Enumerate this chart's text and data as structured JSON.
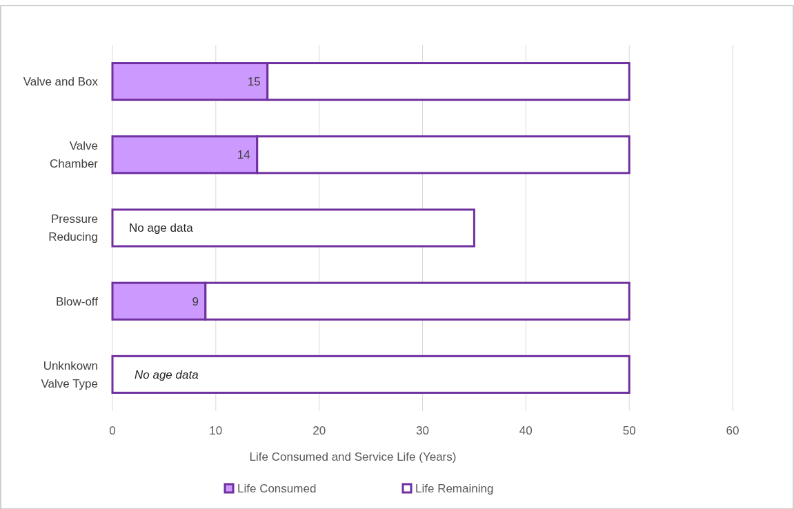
{
  "chart_data": {
    "type": "bar",
    "orientation": "horizontal",
    "stacked": true,
    "categories": [
      "Valve and Box",
      "Valve\nChamber",
      "Pressure\nReducing",
      "Blow-off",
      "Unknkown\nValve Type"
    ],
    "series": [
      {
        "name": "Life Consumed",
        "color": "#cc99ff",
        "values": [
          15,
          14,
          null,
          9,
          null
        ],
        "value_labels": [
          "15",
          "14",
          null,
          "9",
          null
        ]
      },
      {
        "name": "Life Remaining",
        "color": "#ffffff",
        "values": [
          35,
          36,
          35,
          41,
          50
        ]
      }
    ],
    "xlabel": "Life Consumed and Service Life (Years)",
    "xlim": [
      0,
      60
    ],
    "xticks": [
      0,
      10,
      20,
      30,
      40,
      50,
      60
    ],
    "grid": "x",
    "legend": "bottom",
    "annotations": [
      "No age data",
      "No age data"
    ]
  }
}
